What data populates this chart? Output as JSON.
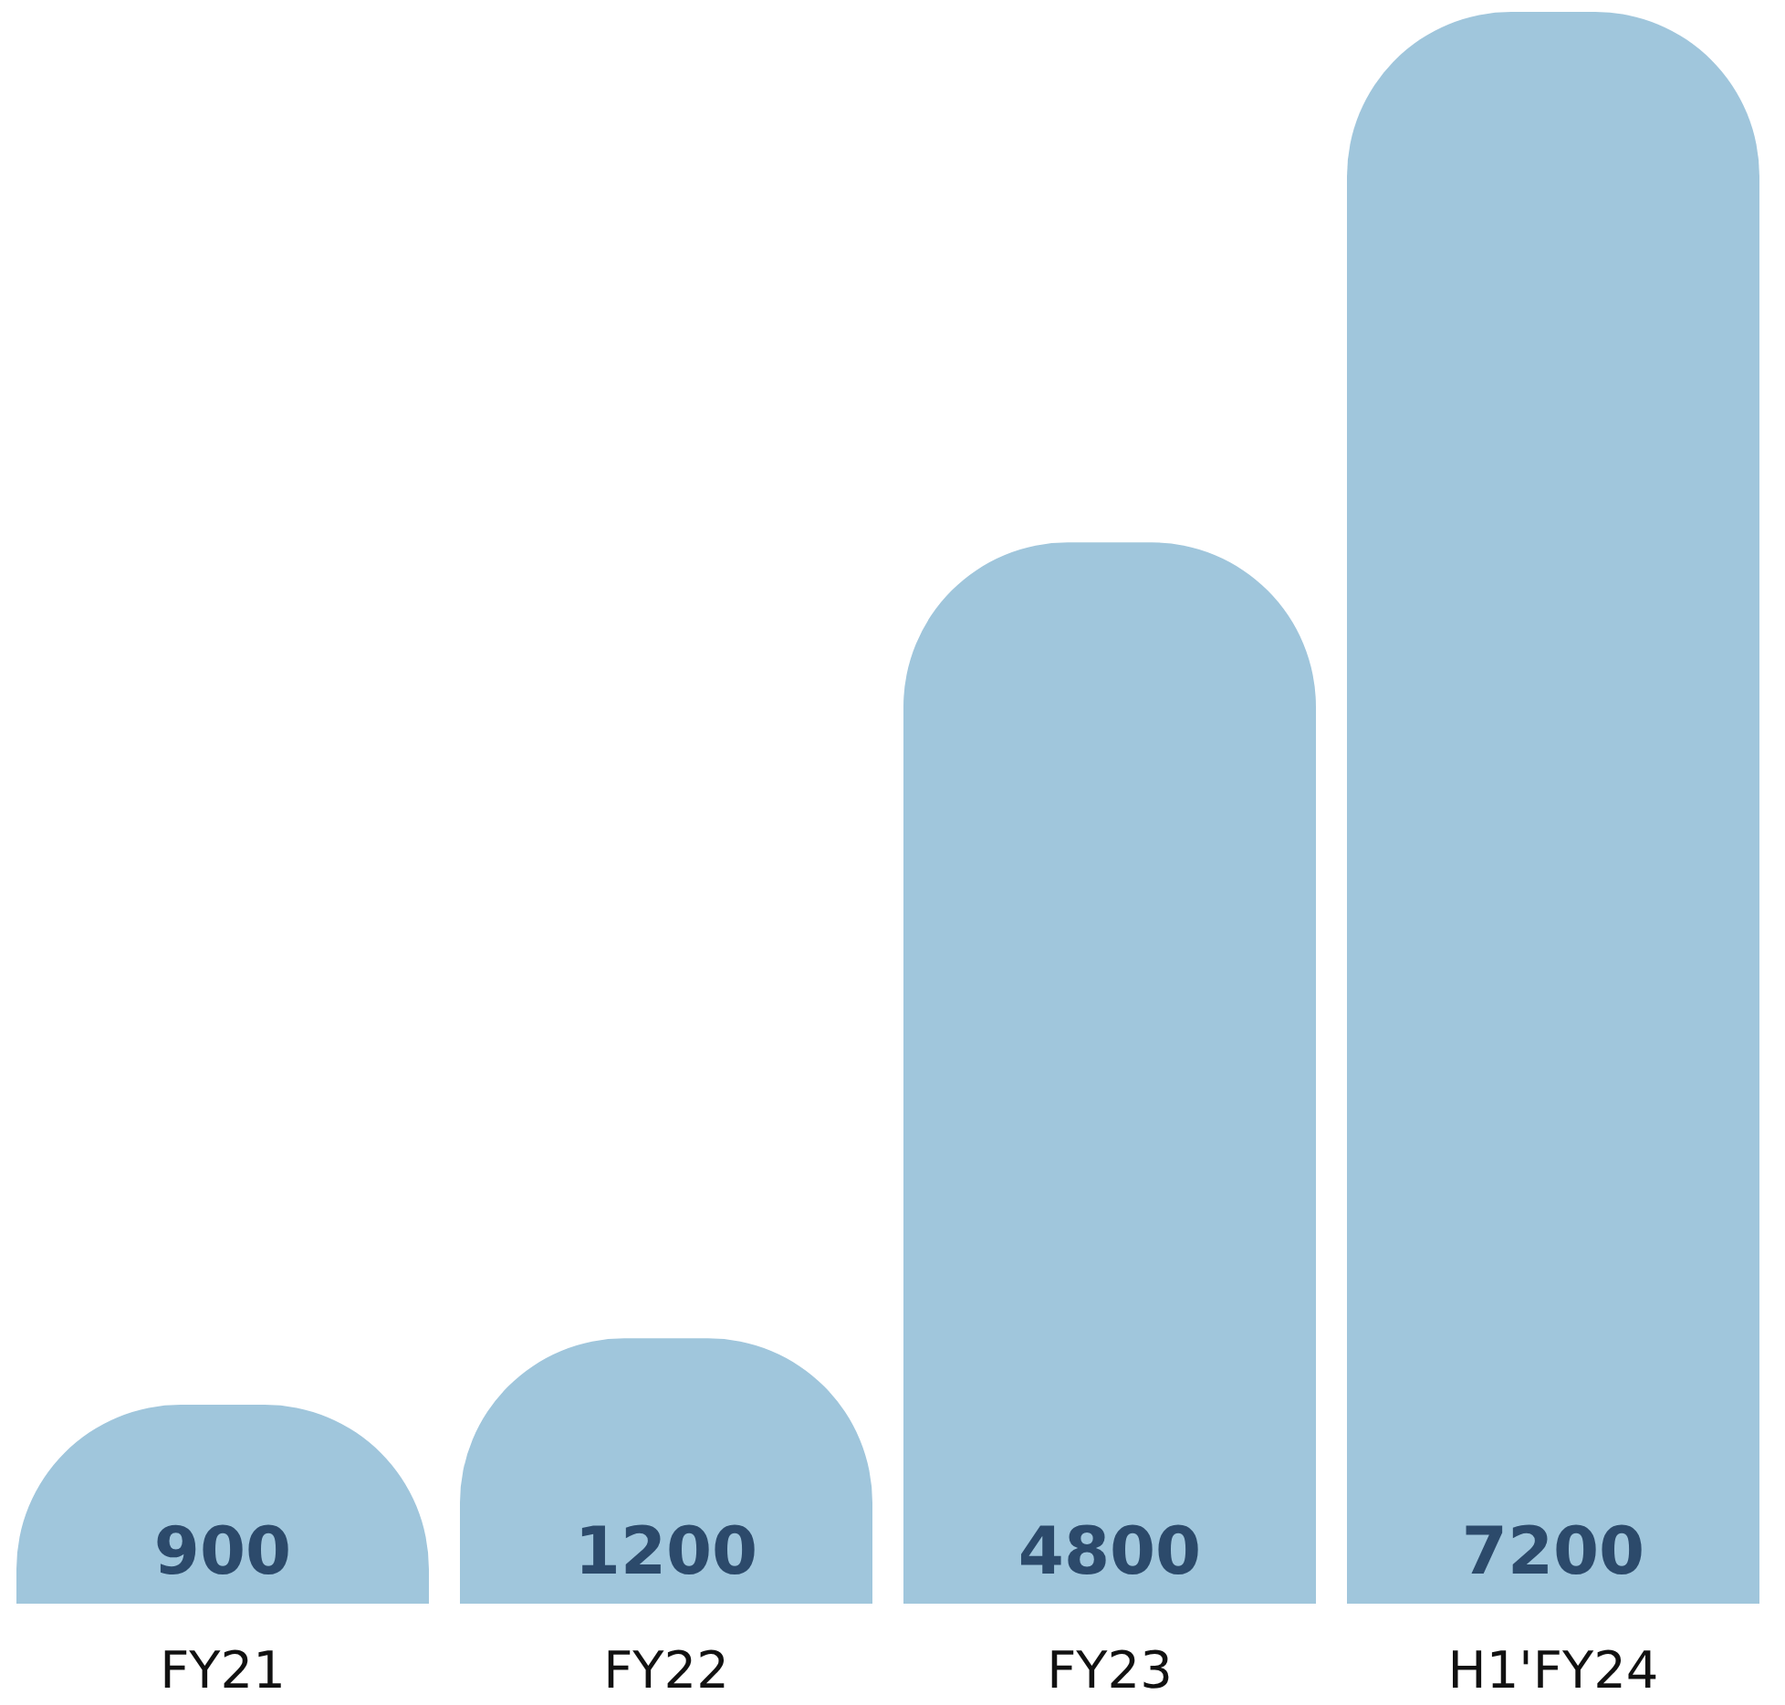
{
  "chart_data": {
    "type": "bar",
    "categories": [
      "FY21",
      "FY22",
      "FY23",
      "H1'FY24"
    ],
    "values": [
      900,
      1200,
      4800,
      7200
    ],
    "color": "#a0c6dc",
    "data_labels": true,
    "grid": false
  }
}
